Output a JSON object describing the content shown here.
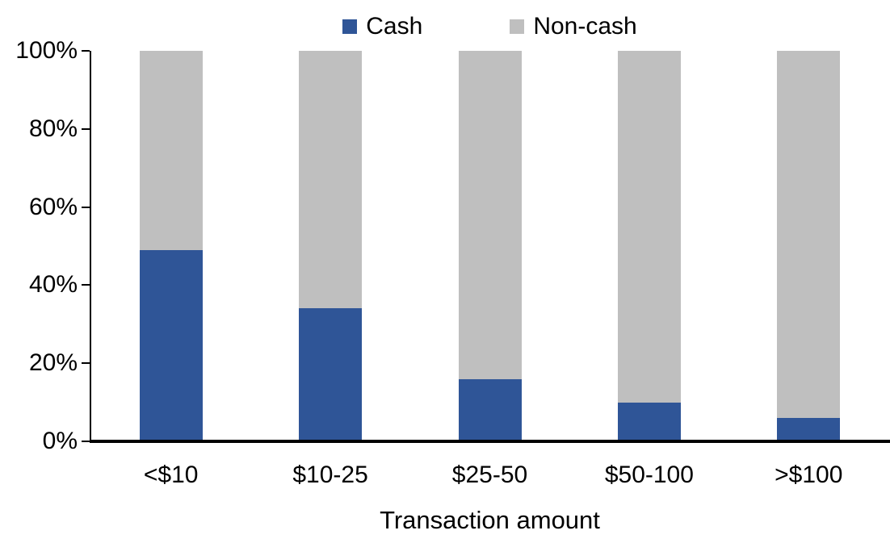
{
  "chart_data": {
    "type": "bar",
    "stacked": true,
    "stacked_100_percent": true,
    "title": "",
    "xlabel": "Transaction amount",
    "ylabel": "",
    "categories": [
      "<$10",
      "$10-25",
      "$25-50",
      "$50-100",
      ">$100"
    ],
    "series": [
      {
        "name": "Cash",
        "color": "#2F5597",
        "values": [
          49,
          34,
          16,
          10,
          6
        ]
      },
      {
        "name": "Non-cash",
        "color": "#BFBFBF",
        "values": [
          51,
          66,
          84,
          90,
          94
        ]
      }
    ],
    "y_ticks": [
      "0%",
      "20%",
      "40%",
      "60%",
      "80%",
      "100%"
    ],
    "ylim": [
      0,
      100
    ],
    "legend_position": "top-center",
    "grid": false
  },
  "colors": {
    "axis": "#000000",
    "background": "#FFFFFF",
    "text": "#000000"
  }
}
